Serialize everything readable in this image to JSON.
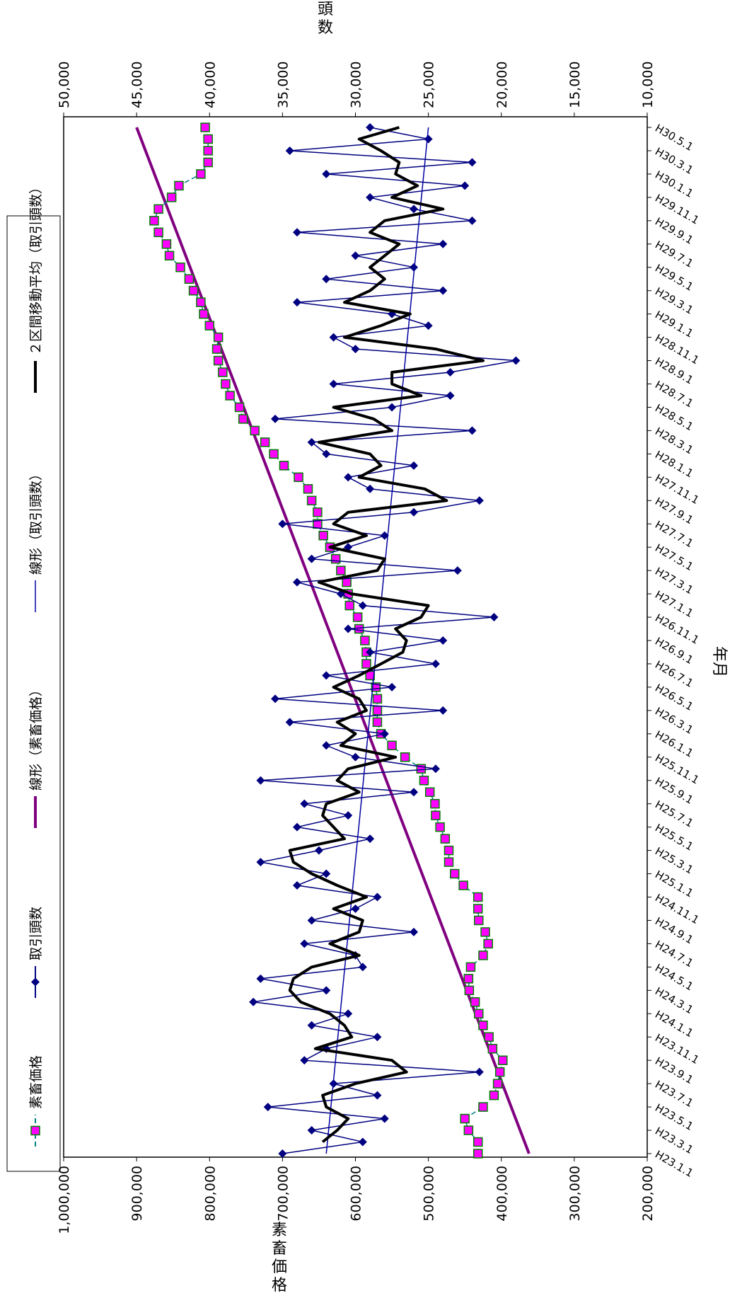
{
  "chart_data": {
    "type": "line",
    "x": [
      "H23.1",
      "H23.2",
      "H23.3",
      "H23.4",
      "H23.5",
      "H23.6",
      "H23.7",
      "H23.8",
      "H23.9",
      "H23.10",
      "H23.11",
      "H23.12",
      "H24.1",
      "H24.2",
      "H24.3",
      "H24.4",
      "H24.5",
      "H24.6",
      "H24.7",
      "H24.8",
      "H24.9",
      "H24.10",
      "H24.11",
      "H24.12",
      "H25.1",
      "H25.2",
      "H25.3",
      "H25.4",
      "H25.5",
      "H25.6",
      "H25.7",
      "H25.8",
      "H25.9",
      "H25.10",
      "H25.11",
      "H25.12",
      "H26.1",
      "H26.2",
      "H26.3",
      "H26.4",
      "H26.5",
      "H26.6",
      "H26.7",
      "H26.8",
      "H26.9",
      "H26.10",
      "H26.11",
      "H26.12",
      "H27.1",
      "H27.2",
      "H27.3",
      "H27.4",
      "H27.5",
      "H27.6",
      "H27.7",
      "H27.8",
      "H27.9",
      "H27.10",
      "H27.11",
      "H27.12",
      "H28.1",
      "H28.2",
      "H28.3",
      "H28.4",
      "H28.5",
      "H28.6",
      "H28.7",
      "H28.8",
      "H28.9",
      "H28.10",
      "H28.11",
      "H28.12",
      "H29.1",
      "H29.2",
      "H29.3",
      "H29.4",
      "H29.5",
      "H29.6",
      "H29.7",
      "H29.8",
      "H29.9",
      "H29.10",
      "H29.11",
      "H29.12",
      "H30.1",
      "H30.2",
      "H30.3",
      "H30.4",
      "H30.5"
    ],
    "xtick_labels": [
      "H23.1.1",
      "H23.3.1",
      "H23.5.1",
      "H23.7.1",
      "H23.9.1",
      "H23.11.1",
      "H24.1.1",
      "H24.3.1",
      "H24.5.1",
      "H24.7.1",
      "H24.9.1",
      "H24.11.1",
      "H25.1.1",
      "H25.3.1",
      "H25.5.1",
      "H25.7.1",
      "H25.9.1",
      "H25.11.1",
      "H26.1.1",
      "H26.3.1",
      "H26.5.1",
      "H26.7.1",
      "H26.9.1",
      "H26.11.1",
      "H27.1.1",
      "H27.3.1",
      "H27.5.1",
      "H27.7.1",
      "H27.9.1",
      "H27.11.1",
      "H28.1.1",
      "H28.3.1",
      "H28.5.1",
      "H28.7.1",
      "H28.9.1",
      "H28.11.1",
      "H29.1.1",
      "H29.3.1",
      "H29.5.1",
      "H29.7.1",
      "H29.9.1",
      "H29.11.1",
      "H30.1.1",
      "H30.3.1",
      "H30.5.1"
    ],
    "xlabel": "年月",
    "ylabel_left": "素畜価格",
    "ylabel_right": "頭数",
    "ylim_left": [
      200000,
      1000000
    ],
    "yticks_left": [
      "200,000",
      "300,000",
      "400,000",
      "500,000",
      "600,000",
      "700,000",
      "800,000",
      "900,000",
      "1,000,000"
    ],
    "ylim_right": [
      10000,
      50000
    ],
    "yticks_right": [
      "10,000",
      "15,000",
      "20,000",
      "25,000",
      "30,000",
      "35,000",
      "40,000",
      "45,000",
      "50,000"
    ],
    "legend_position": "top (rotated chart: right side)",
    "series": [
      {
        "name": "素畜価格",
        "axis": "left",
        "color": "#FF00FF",
        "line_color": "#008080",
        "style": "dashed-square-markers",
        "values": [
          432000,
          432000,
          445000,
          450000,
          425000,
          410000,
          405000,
          402000,
          398000,
          412000,
          417000,
          425000,
          431000,
          436000,
          444000,
          445000,
          442000,
          425000,
          418000,
          422000,
          431000,
          432000,
          432000,
          452000,
          464000,
          472000,
          472000,
          477000,
          484000,
          490000,
          491000,
          498000,
          506000,
          510000,
          532000,
          550000,
          565000,
          570000,
          570000,
          570000,
          572000,
          580000,
          585000,
          585000,
          587000,
          595000,
          597000,
          608000,
          610000,
          612000,
          620000,
          627000,
          635000,
          644000,
          652000,
          652000,
          660000,
          665000,
          678000,
          698000,
          712000,
          724000,
          738000,
          754000,
          759000,
          772000,
          778000,
          782000,
          788000,
          790000,
          788000,
          800000,
          808000,
          812000,
          822000,
          828000,
          840000,
          855000,
          859000,
          870000,
          876000,
          870000,
          852000,
          842000,
          812000,
          802000,
          802000,
          802000,
          806000
        ]
      },
      {
        "name": "取引頭数",
        "axis": "right",
        "color": "#000080",
        "style": "diamond-markers",
        "values": [
          35000,
          29500,
          33000,
          28000,
          36000,
          28500,
          31500,
          21500,
          33500,
          32000,
          28500,
          33000,
          30500,
          37000,
          32000,
          36500,
          29500,
          30000,
          33500,
          26000,
          33000,
          30000,
          28500,
          34000,
          32000,
          36500,
          32500,
          29000,
          34000,
          30500,
          33500,
          26000,
          36500,
          24500,
          30000,
          32000,
          28000,
          34500,
          24000,
          35500,
          27500,
          32000,
          24500,
          29000,
          24000,
          30500,
          20500,
          29500,
          31000,
          34000,
          23000,
          33000,
          30500,
          28000,
          35000,
          26000,
          21500,
          29000,
          30500,
          26000,
          32000,
          33000,
          22000,
          35500,
          27500,
          23500,
          31500,
          23500,
          19000,
          30000,
          31500,
          25000,
          27500,
          34000,
          24000,
          32000,
          26000,
          30000,
          24000,
          34000,
          22000,
          26000,
          29000,
          22500,
          32000,
          22000,
          34500,
          25000,
          29000
        ]
      },
      {
        "name": "線形（素畜価格）",
        "axis": "left",
        "color": "#800080",
        "start": 362000,
        "end": 900000
      },
      {
        "name": "線形（取引頭数）",
        "axis": "right",
        "color": "#0000A0",
        "start": 32000,
        "end": 25000
      },
      {
        "name": "２区間移動平均（取引頭数）",
        "axis": "right",
        "color": "#000000",
        "window": 2
      }
    ]
  }
}
